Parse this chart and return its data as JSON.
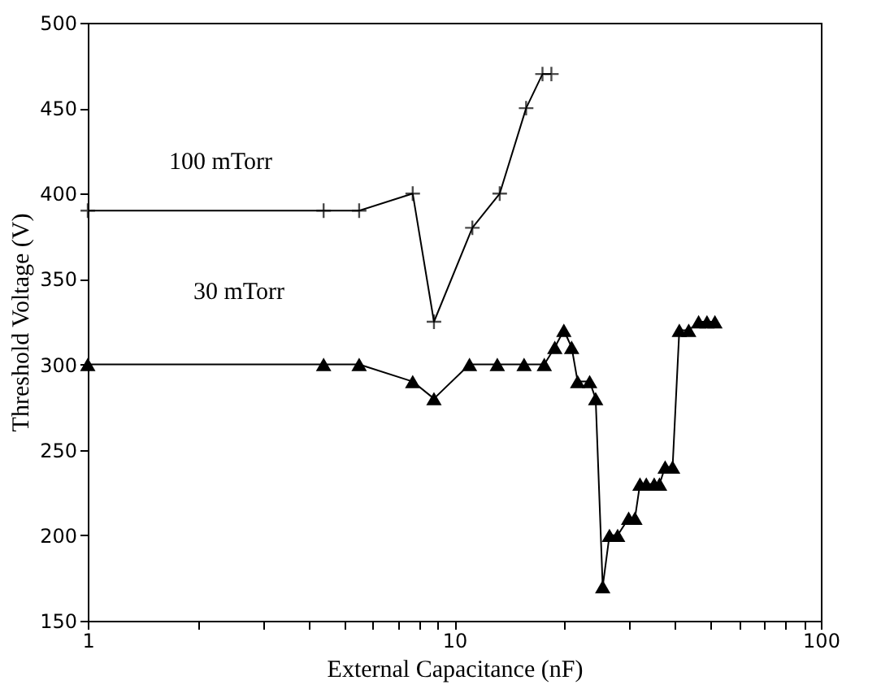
{
  "chart_data": {
    "type": "line",
    "xlabel": "External Capacitance (nF)",
    "ylabel": "Threshold Voltage (V)",
    "log": "x",
    "xlim": [
      1,
      100
    ],
    "ylim": [
      150,
      500
    ],
    "xticks": [
      1,
      {
        "value": 2,
        "label": null
      },
      {
        "value": 3,
        "label": null
      },
      {
        "value": 4,
        "label": null
      },
      {
        "value": 5,
        "label": null
      },
      {
        "value": 6,
        "label": null
      },
      {
        "value": 7,
        "label": null
      },
      {
        "value": 8,
        "label": null
      },
      {
        "value": 9,
        "label": null
      },
      10,
      {
        "value": 20,
        "label": null
      },
      {
        "value": 30,
        "label": null
      },
      {
        "value": 40,
        "label": null
      },
      {
        "value": 50,
        "label": null
      },
      {
        "value": 60,
        "label": null
      },
      {
        "value": 70,
        "label": null
      },
      {
        "value": 80,
        "label": null
      },
      {
        "value": 90,
        "label": null
      },
      100
    ],
    "yticks": [
      150,
      200,
      250,
      300,
      350,
      400,
      450,
      500
    ],
    "grid": false,
    "series": [
      {
        "color": "#000000",
        "marker": "cross",
        "x": [
          1,
          4.4,
          5.5,
          7.7,
          8.8,
          11.2,
          13.3,
          15.7,
          17.4,
          18.4
        ],
        "values": [
          390,
          390,
          390,
          400,
          325,
          380,
          400,
          450,
          470,
          470
        ]
      },
      {
        "color": "#000000",
        "marker": "triangle",
        "x": [
          1,
          4.4,
          5.5,
          7.7,
          8.8,
          11,
          13.1,
          15.5,
          17.6,
          18.8,
          19.9,
          20.9,
          21.7,
          23.4,
          24.3,
          25.4,
          26.5,
          27.9,
          29.9,
          31.1,
          32.1,
          33.4,
          35.1,
          36.3,
          37.6,
          39.4,
          41.1,
          43.6,
          46.4,
          48.9,
          51.4
        ],
        "values": [
          300,
          300,
          300,
          290,
          280,
          300,
          300,
          300,
          300,
          310,
          320,
          310,
          290,
          290,
          280,
          170,
          200,
          200,
          210,
          210,
          230,
          230,
          230,
          230,
          240,
          240,
          320,
          320,
          325,
          325,
          325
        ]
      }
    ],
    "annotations": [
      "100 mTorr",
      "30 mTorr"
    ]
  }
}
